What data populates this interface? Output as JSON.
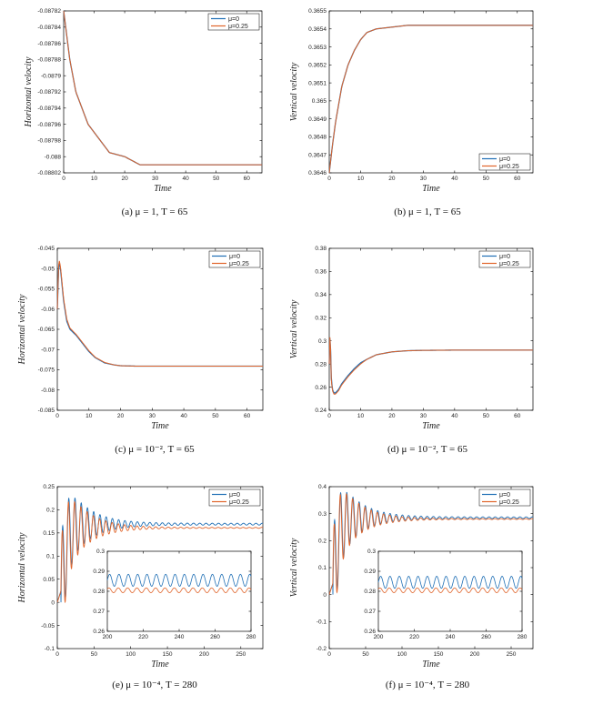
{
  "colors": {
    "mu0": "#1f6fb5",
    "mu025": "#e0642a",
    "axis": "#000000"
  },
  "legend_labels": [
    "μ=0",
    "μ=0.25"
  ],
  "chart_data": [
    {
      "type": "line",
      "caption": "(a)  μ = 1, T = 65",
      "xlabel": "Time",
      "ylabel": "Horizontal velocity",
      "xlim": [
        0,
        65
      ],
      "ylim": [
        -0.08802,
        -0.08782
      ],
      "xticks": [
        0,
        10,
        20,
        30,
        40,
        50,
        60
      ],
      "yticks": [
        -0.08802,
        -0.088,
        -0.08798,
        -0.08796,
        -0.08794,
        -0.08792,
        -0.0879,
        -0.08788,
        -0.08786,
        -0.08784,
        -0.08782
      ],
      "ytick_labels": [
        "-0.08802",
        "-0.088",
        "-0.08798",
        "-0.08796",
        "-0.08794",
        "-0.08792",
        "-0.0879",
        "-0.08788",
        "-0.08786",
        "-0.08784",
        "-0.08782"
      ],
      "legend": "top-right",
      "series": [
        {
          "name": "μ=0",
          "x": [
            0,
            2,
            4,
            6,
            8,
            10,
            12,
            15,
            20,
            25,
            30,
            40,
            50,
            65
          ],
          "y": [
            -0.08782,
            -0.08788,
            -0.08792,
            -0.08794,
            -0.08796,
            -0.08797,
            -0.08798,
            -0.087995,
            -0.088,
            -0.08801,
            -0.08801,
            -0.08801,
            -0.08801,
            -0.08801
          ]
        },
        {
          "name": "μ=0.25",
          "x": [
            0,
            2,
            4,
            6,
            8,
            10,
            12,
            15,
            20,
            25,
            30,
            40,
            50,
            65
          ],
          "y": [
            -0.08782,
            -0.08788,
            -0.08792,
            -0.08794,
            -0.08796,
            -0.08797,
            -0.08798,
            -0.087995,
            -0.088,
            -0.08801,
            -0.08801,
            -0.08801,
            -0.08801,
            -0.08801
          ]
        }
      ]
    },
    {
      "type": "line",
      "caption": "(b)  μ = 1, T = 65",
      "xlabel": "Time",
      "ylabel": "Vertical velocity",
      "xlim": [
        0,
        65
      ],
      "ylim": [
        0.3646,
        0.3655
      ],
      "xticks": [
        0,
        10,
        20,
        30,
        40,
        50,
        60
      ],
      "yticks": [
        0.3646,
        0.3647,
        0.3648,
        0.3649,
        0.365,
        0.3651,
        0.3652,
        0.3653,
        0.3654,
        0.3655
      ],
      "ytick_labels": [
        "0.3646",
        "0.3647",
        "0.3648",
        "0.3649",
        "0.365",
        "0.3651",
        "0.3652",
        "0.3653",
        "0.3654",
        "0.3655"
      ],
      "legend": "bottom-right",
      "series": [
        {
          "name": "μ=0",
          "x": [
            0,
            1,
            2,
            4,
            6,
            8,
            10,
            12,
            15,
            20,
            25,
            30,
            40,
            65
          ],
          "y": [
            0.3646,
            0.36475,
            0.36488,
            0.36508,
            0.3652,
            0.36528,
            0.36534,
            0.36538,
            0.3654,
            0.36541,
            0.36542,
            0.36542,
            0.36542,
            0.36542
          ]
        },
        {
          "name": "μ=0.25",
          "x": [
            0,
            1,
            2,
            4,
            6,
            8,
            10,
            12,
            15,
            20,
            25,
            30,
            40,
            65
          ],
          "y": [
            0.3646,
            0.36475,
            0.36488,
            0.36508,
            0.3652,
            0.36528,
            0.36534,
            0.36538,
            0.3654,
            0.36541,
            0.36542,
            0.36542,
            0.36542,
            0.36542
          ]
        }
      ]
    },
    {
      "type": "line",
      "caption": "(c)  μ = 10⁻², T = 65",
      "xlabel": "Time",
      "ylabel": "Horizontal velocity",
      "xlim": [
        0,
        65
      ],
      "ylim": [
        -0.085,
        -0.045
      ],
      "xticks": [
        0,
        10,
        20,
        30,
        40,
        50,
        60
      ],
      "yticks": [
        -0.085,
        -0.08,
        -0.075,
        -0.07,
        -0.065,
        -0.06,
        -0.055,
        -0.05,
        -0.045
      ],
      "ytick_labels": [
        "-0.085",
        "-0.08",
        "-0.075",
        "-0.07",
        "-0.065",
        "-0.06",
        "-0.055",
        "-0.05",
        "-0.045"
      ],
      "legend": "top-right",
      "series": [
        {
          "name": "μ=0",
          "x": [
            0,
            0.5,
            1,
            2,
            3,
            4,
            6,
            8,
            10,
            12,
            15,
            18,
            20,
            25,
            30,
            65
          ],
          "y": [
            -0.06,
            -0.048,
            -0.05,
            -0.058,
            -0.063,
            -0.065,
            -0.0665,
            -0.0685,
            -0.0705,
            -0.072,
            -0.0733,
            -0.0738,
            -0.074,
            -0.0741,
            -0.0741,
            -0.0741
          ]
        },
        {
          "name": "μ=0.25",
          "x": [
            0,
            0.5,
            1,
            2,
            3,
            4,
            6,
            8,
            10,
            12,
            15,
            18,
            20,
            25,
            30,
            65
          ],
          "y": [
            -0.06,
            -0.0475,
            -0.0495,
            -0.0575,
            -0.0625,
            -0.0647,
            -0.0663,
            -0.0683,
            -0.0703,
            -0.0719,
            -0.0732,
            -0.0738,
            -0.074,
            -0.0741,
            -0.0741,
            -0.0741
          ]
        }
      ]
    },
    {
      "type": "line",
      "caption": "(d)  μ = 10⁻², T = 65",
      "xlabel": "Time",
      "ylabel": "Vertical velocity",
      "xlim": [
        0,
        65
      ],
      "ylim": [
        0.24,
        0.38
      ],
      "xticks": [
        0,
        10,
        20,
        30,
        40,
        50,
        60
      ],
      "yticks": [
        0.24,
        0.26,
        0.28,
        0.3,
        0.32,
        0.34,
        0.36,
        0.38
      ],
      "ytick_labels": [
        "0.24",
        "0.26",
        "0.28",
        "0.3",
        "0.32",
        "0.34",
        "0.36",
        "0.38"
      ],
      "legend": "top-right",
      "series": [
        {
          "name": "μ=0",
          "x": [
            0,
            0.3,
            0.6,
            1,
            1.5,
            2,
            3,
            4,
            6,
            8,
            10,
            12,
            15,
            20,
            25,
            30,
            40,
            65
          ],
          "y": [
            0.28,
            0.31,
            0.27,
            0.258,
            0.255,
            0.255,
            0.258,
            0.263,
            0.27,
            0.276,
            0.281,
            0.284,
            0.288,
            0.2905,
            0.2915,
            0.2918,
            0.292,
            0.292
          ]
        },
        {
          "name": "μ=0.25",
          "x": [
            0,
            0.3,
            0.6,
            1,
            1.5,
            2,
            3,
            4,
            6,
            8,
            10,
            12,
            15,
            20,
            25,
            30,
            40,
            65
          ],
          "y": [
            0.28,
            0.312,
            0.268,
            0.257,
            0.254,
            0.254,
            0.257,
            0.262,
            0.269,
            0.275,
            0.28,
            0.284,
            0.288,
            0.2905,
            0.2915,
            0.2918,
            0.292,
            0.292
          ]
        }
      ]
    },
    {
      "type": "line",
      "caption": "(e)  μ = 10⁻⁴, T = 280",
      "xlabel": "Time",
      "ylabel": "Horizontal velocity",
      "xlim": [
        0,
        280
      ],
      "ylim": [
        -0.1,
        0.25
      ],
      "xticks": [
        0,
        50,
        100,
        150,
        200,
        250
      ],
      "yticks": [
        -0.1,
        -0.05,
        0,
        0.05,
        0.1,
        0.15,
        0.2,
        0.25
      ],
      "ytick_labels": [
        "-0.1",
        "-0.05",
        "0",
        "0.05",
        "0.1",
        "0.15",
        "0.2",
        "0.25"
      ],
      "legend": "top-right",
      "oscillation": {
        "period": 8.5,
        "start_x": 5,
        "decay_rate": 0.035,
        "mu0": {
          "level": 0.169,
          "amp0": 0.12,
          "floor_amp": 0.002
        },
        "mu025": {
          "level": 0.161,
          "amp0": 0.12,
          "floor_amp": 0.001
        }
      },
      "inset": {
        "xlim": [
          200,
          280
        ],
        "ylim": [
          0.26,
          0.3
        ],
        "xticks": [
          200,
          220,
          240,
          260,
          280
        ],
        "yticks": [
          0.26,
          0.27,
          0.28,
          0.29,
          0.3
        ],
        "ytick_labels": [
          "0.26",
          "0.27",
          "0.28",
          "0.29",
          "0.3"
        ],
        "mu0": {
          "level": 0.2855,
          "amp": 0.003,
          "period": 5.2
        },
        "mu025": {
          "level": 0.2805,
          "amp": 0.0012,
          "period": 5.2
        }
      }
    },
    {
      "type": "line",
      "caption": "(f)  μ = 10⁻⁴, T = 280",
      "xlabel": "Time",
      "ylabel": "Vertical velocity",
      "xlim": [
        0,
        280
      ],
      "ylim": [
        -0.2,
        0.4
      ],
      "xticks": [
        0,
        50,
        100,
        150,
        200,
        250
      ],
      "yticks": [
        -0.2,
        -0.1,
        0,
        0.1,
        0.2,
        0.3,
        0.4
      ],
      "ytick_labels": [
        "-0.2",
        "-0.1",
        "0",
        "0.1",
        "0.2",
        "0.3",
        "0.4"
      ],
      "legend": "top-right",
      "oscillation": {
        "period": 8.5,
        "start_x": 5,
        "decay_rate": 0.035,
        "mu0": {
          "level": 0.285,
          "amp0": 0.2,
          "floor_amp": 0.003
        },
        "mu025": {
          "level": 0.28,
          "amp0": 0.2,
          "floor_amp": 0.0015
        }
      },
      "inset": {
        "xlim": [
          200,
          280
        ],
        "ylim": [
          0.26,
          0.3
        ],
        "xticks": [
          200,
          220,
          240,
          260,
          280
        ],
        "yticks": [
          0.26,
          0.27,
          0.28,
          0.29,
          0.3
        ],
        "ytick_labels": [
          "0.26",
          "0.27",
          "0.28",
          "0.29",
          "0.3"
        ],
        "mu0": {
          "level": 0.2845,
          "amp": 0.003,
          "period": 5.2
        },
        "mu025": {
          "level": 0.2805,
          "amp": 0.0012,
          "period": 5.2
        }
      }
    }
  ]
}
